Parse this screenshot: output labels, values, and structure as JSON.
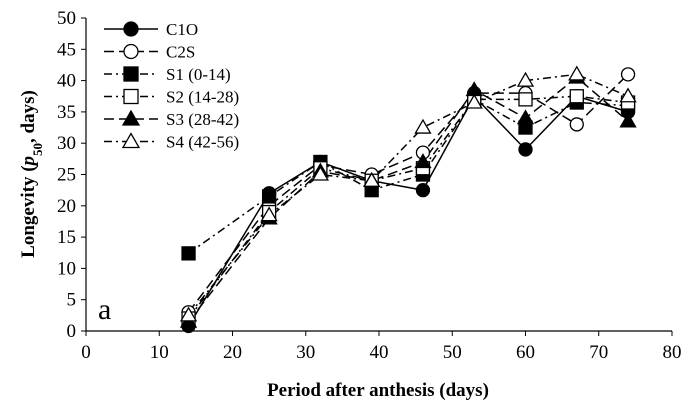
{
  "chart_data": {
    "type": "line",
    "panel_label": "a",
    "xlabel": "Period after anthesis (days)",
    "ylabel": "Longevity (p50, days)",
    "ylabel_parts": {
      "before": "Longevity (",
      "italic": "p",
      "subscript": "50",
      "after": ", days)"
    },
    "xlim": [
      0,
      80
    ],
    "ylim": [
      0,
      50
    ],
    "xticks": [
      0,
      10,
      20,
      30,
      40,
      50,
      60,
      70,
      80
    ],
    "yticks": [
      0,
      5,
      10,
      15,
      20,
      25,
      30,
      35,
      40,
      45,
      50
    ],
    "grid": false,
    "legend_position": "top-left",
    "x": [
      14,
      25,
      32,
      39,
      46,
      53,
      60,
      67,
      74
    ],
    "series": [
      {
        "name": "C1O",
        "marker": "circle-filled",
        "dash": "solid",
        "values": [
          0.8,
          22.0,
          27.0,
          24.0,
          22.5,
          37.5,
          29.0,
          37.5,
          35.0
        ]
      },
      {
        "name": "C2S",
        "marker": "circle-open",
        "dash": "long-dash",
        "values": [
          3.0,
          20.0,
          26.5,
          25.0,
          28.5,
          38.0,
          38.0,
          33.0,
          41.0
        ]
      },
      {
        "name": "S1 (0-14)",
        "marker": "square-filled",
        "dash": "dash-dot",
        "values": [
          12.4,
          21.5,
          27.0,
          22.5,
          25.0,
          37.0,
          32.5,
          36.5,
          36.0
        ]
      },
      {
        "name": "S2 (14-28)",
        "marker": "square-open",
        "dash": "dash-dot",
        "values": [
          2.0,
          19.0,
          26.0,
          24.0,
          26.0,
          37.0,
          37.0,
          37.5,
          36.5
        ]
      },
      {
        "name": "S3 (28-42)",
        "marker": "triangle-filled",
        "dash": "long-dash",
        "values": [
          1.5,
          18.0,
          25.5,
          24.0,
          27.0,
          38.5,
          34.0,
          40.5,
          33.5
        ]
      },
      {
        "name": "S4 (42-56)",
        "marker": "triangle-open",
        "dash": "dash-dot",
        "values": [
          2.5,
          18.5,
          25.0,
          24.0,
          32.5,
          36.5,
          40.0,
          41.0,
          37.5
        ]
      }
    ]
  }
}
